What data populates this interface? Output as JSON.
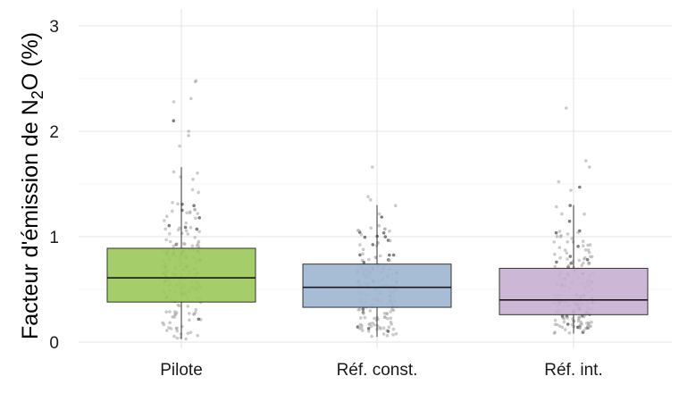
{
  "chart_data": {
    "type": "boxplot",
    "title": "",
    "xlabel": "",
    "ylabel": {
      "prefix": "Facteur d'émission de N",
      "subscript": "2",
      "suffix": "O (%)"
    },
    "ylim": [
      -0.05,
      3.15
    ],
    "yticks": [
      {
        "value": 0,
        "label": "0"
      },
      {
        "value": 1,
        "label": "1"
      },
      {
        "value": 2,
        "label": "2"
      },
      {
        "value": 3,
        "label": "3"
      }
    ],
    "grid": true,
    "categories": [
      "Pilote",
      "Réf. const.",
      "Réf. int."
    ],
    "boxes": [
      {
        "name": "Pilote",
        "color": "#9dc95c",
        "q1": 0.38,
        "median": 0.61,
        "q3": 0.89,
        "whisker_low": 0.03,
        "whisker_high": 1.66,
        "n_points": 190,
        "outliers": [
          2.1,
          2.28,
          2.31,
          2.48,
          2.47,
          1.96,
          2.0,
          1.86
        ],
        "seed": 11
      },
      {
        "name": "Réf. const.",
        "color": "#9fb7d2",
        "q1": 0.33,
        "median": 0.52,
        "q3": 0.74,
        "whisker_low": 0.05,
        "whisker_high": 1.3,
        "n_points": 180,
        "outliers": [
          1.38,
          1.35,
          1.66
        ],
        "seed": 23
      },
      {
        "name": "Réf. int.",
        "color": "#c9b1d2",
        "q1": 0.26,
        "median": 0.4,
        "q3": 0.7,
        "whisker_low": 0.08,
        "whisker_high": 1.3,
        "n_points": 185,
        "outliers": [
          2.22,
          1.72,
          1.66,
          1.52,
          1.47,
          1.44
        ],
        "seed": 37
      }
    ]
  }
}
